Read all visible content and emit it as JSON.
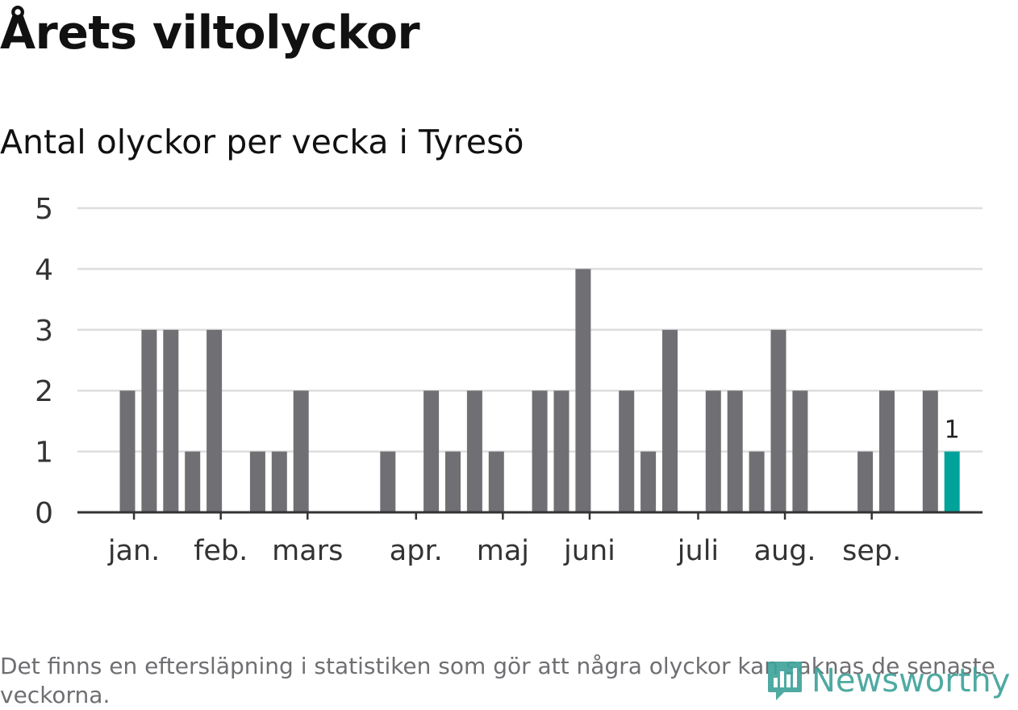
{
  "title": "Årets viltolyckor",
  "subtitle": "Antal olyckor per vecka i Tyresö",
  "footnote": "Det finns en eftersläpning i statistiken som gör att några olyckor kan saknas de senaste veckorna.",
  "logo_text": "Newsworthy",
  "colors": {
    "bar": "#706f74",
    "highlight": "#00a39a",
    "grid": "#dddddd",
    "axis": "#333333"
  },
  "chart_data": {
    "type": "bar",
    "title": "Antal olyckor per vecka i Tyresö",
    "xlabel": "",
    "ylabel": "",
    "ylim": [
      0,
      5
    ],
    "yticks": [
      0,
      1,
      2,
      3,
      4,
      5
    ],
    "grid": true,
    "week_start": 1,
    "values": [
      2,
      3,
      3,
      1,
      3,
      0,
      1,
      1,
      2,
      0,
      0,
      0,
      1,
      0,
      2,
      1,
      2,
      1,
      0,
      2,
      2,
      4,
      0,
      2,
      1,
      3,
      0,
      2,
      2,
      1,
      3,
      2,
      0,
      0,
      1,
      2,
      0,
      2,
      1
    ],
    "highlight_index": 38,
    "highlight_label": "1",
    "month_labels": [
      {
        "label": "jan.",
        "week": 1.3
      },
      {
        "label": "feb.",
        "week": 5.3
      },
      {
        "label": "mars",
        "week": 9.3
      },
      {
        "label": "apr.",
        "week": 14.3
      },
      {
        "label": "maj",
        "week": 18.3
      },
      {
        "label": "juni",
        "week": 22.3
      },
      {
        "label": "juli",
        "week": 27.3
      },
      {
        "label": "aug.",
        "week": 31.3
      },
      {
        "label": "sep.",
        "week": 35.3
      }
    ]
  }
}
